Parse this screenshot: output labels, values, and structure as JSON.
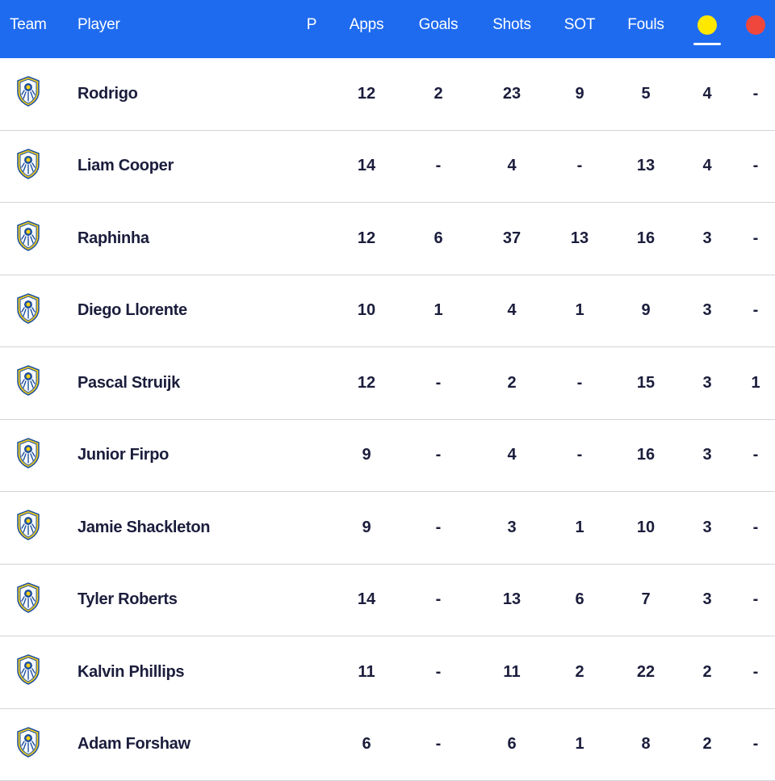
{
  "header": {
    "team": "Team",
    "player": "Player",
    "p": "P",
    "apps": "Apps",
    "goals": "Goals",
    "shots": "Shots",
    "sot": "SOT",
    "fouls": "Fouls",
    "yellow_icon": "yellow-card-icon",
    "red_icon": "red-card-icon",
    "sorted_by": "yellow"
  },
  "colors": {
    "header_bg": "#1f6bf0",
    "yellow": "#ffe800",
    "red": "#f0473d",
    "text": "#1b1d3c",
    "crest_blue": "#1d4fa0",
    "crest_yellow": "#f7d117"
  },
  "team_icon": "leeds-united-crest-icon",
  "rows": [
    {
      "player": "Rodrigo",
      "p": "",
      "apps": "12",
      "goals": "2",
      "shots": "23",
      "sot": "9",
      "fouls": "5",
      "yellow": "4",
      "red": "-"
    },
    {
      "player": "Liam Cooper",
      "p": "",
      "apps": "14",
      "goals": "-",
      "shots": "4",
      "sot": "-",
      "fouls": "13",
      "yellow": "4",
      "red": "-"
    },
    {
      "player": "Raphinha",
      "p": "",
      "apps": "12",
      "goals": "6",
      "shots": "37",
      "sot": "13",
      "fouls": "16",
      "yellow": "3",
      "red": "-"
    },
    {
      "player": "Diego Llorente",
      "p": "",
      "apps": "10",
      "goals": "1",
      "shots": "4",
      "sot": "1",
      "fouls": "9",
      "yellow": "3",
      "red": "-"
    },
    {
      "player": "Pascal Struijk",
      "p": "",
      "apps": "12",
      "goals": "-",
      "shots": "2",
      "sot": "-",
      "fouls": "15",
      "yellow": "3",
      "red": "1"
    },
    {
      "player": "Junior Firpo",
      "p": "",
      "apps": "9",
      "goals": "-",
      "shots": "4",
      "sot": "-",
      "fouls": "16",
      "yellow": "3",
      "red": "-"
    },
    {
      "player": "Jamie Shackleton",
      "p": "",
      "apps": "9",
      "goals": "-",
      "shots": "3",
      "sot": "1",
      "fouls": "10",
      "yellow": "3",
      "red": "-"
    },
    {
      "player": "Tyler Roberts",
      "p": "",
      "apps": "14",
      "goals": "-",
      "shots": "13",
      "sot": "6",
      "fouls": "7",
      "yellow": "3",
      "red": "-"
    },
    {
      "player": "Kalvin Phillips",
      "p": "",
      "apps": "11",
      "goals": "-",
      "shots": "11",
      "sot": "2",
      "fouls": "22",
      "yellow": "2",
      "red": "-"
    },
    {
      "player": "Adam Forshaw",
      "p": "",
      "apps": "6",
      "goals": "-",
      "shots": "6",
      "sot": "1",
      "fouls": "8",
      "yellow": "2",
      "red": "-"
    }
  ]
}
